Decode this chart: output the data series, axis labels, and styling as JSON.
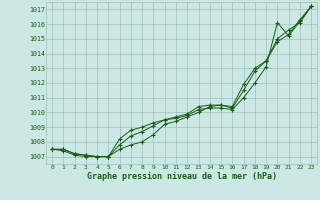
{
  "x": [
    0,
    1,
    2,
    3,
    4,
    5,
    6,
    7,
    8,
    9,
    10,
    11,
    12,
    13,
    14,
    15,
    16,
    17,
    18,
    19,
    20,
    21,
    22,
    23
  ],
  "line1": [
    1007.5,
    1007.5,
    1007.2,
    1007.1,
    1007.0,
    1007.0,
    1008.2,
    1008.8,
    1009.0,
    1009.3,
    1009.5,
    1009.6,
    1009.8,
    1010.2,
    1010.3,
    1010.3,
    1010.2,
    1011.0,
    1012.0,
    1013.1,
    1016.1,
    1015.2,
    1016.2,
    1017.2
  ],
  "line2": [
    1007.5,
    1007.5,
    1007.2,
    1007.1,
    1007.0,
    1007.0,
    1007.8,
    1008.4,
    1008.7,
    1009.1,
    1009.5,
    1009.7,
    1009.9,
    1010.4,
    1010.5,
    1010.5,
    1010.3,
    1011.5,
    1012.8,
    1013.5,
    1014.8,
    1015.3,
    1016.3,
    1017.2
  ],
  "line3": [
    1007.5,
    1007.4,
    1007.1,
    1007.0,
    1007.0,
    1007.0,
    1007.5,
    1007.8,
    1008.0,
    1008.5,
    1009.2,
    1009.4,
    1009.7,
    1010.0,
    1010.4,
    1010.5,
    1010.4,
    1011.9,
    1013.0,
    1013.5,
    1015.0,
    1015.6,
    1016.1,
    1017.2
  ],
  "ylim_min": 1006.5,
  "ylim_max": 1017.5,
  "yticks": [
    1007,
    1008,
    1009,
    1010,
    1011,
    1012,
    1013,
    1014,
    1015,
    1016,
    1017
  ],
  "xlabel": "Graphe pression niveau de la mer (hPa)",
  "bg_color": "#cce8e4",
  "line_color": "#1a5c1a",
  "grid_color": "#a0c0bc",
  "label_color": "#1a5c1a"
}
